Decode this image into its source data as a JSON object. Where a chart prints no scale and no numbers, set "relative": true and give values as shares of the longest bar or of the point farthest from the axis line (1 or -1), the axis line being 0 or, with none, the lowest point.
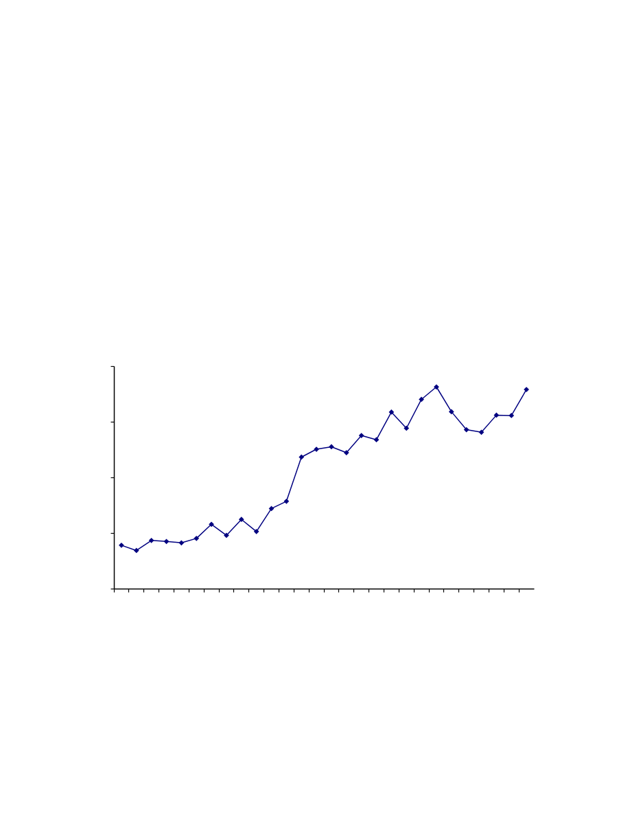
{
  "chart_data": {
    "type": "line",
    "relative": true,
    "categories": [
      null,
      null,
      null,
      null,
      null,
      null,
      null,
      null,
      null,
      null,
      null,
      null,
      null,
      null,
      null,
      null,
      null,
      null,
      null,
      null,
      null,
      null,
      null,
      null,
      null,
      null,
      null,
      null
    ],
    "series": [
      {
        "color": "#000080",
        "values": [
          0.215,
          0.189,
          0.239,
          0.234,
          0.227,
          0.249,
          0.319,
          0.264,
          0.343,
          0.283,
          0.397,
          0.433,
          0.652,
          0.691,
          0.703,
          0.674,
          0.759,
          0.738,
          0.875,
          0.795,
          0.938,
          1,
          0.877,
          0.788,
          0.775,
          0.86,
          0.858,
          0.987
        ]
      }
    ],
    "marker": "diamond",
    "line_style": "solid"
  }
}
